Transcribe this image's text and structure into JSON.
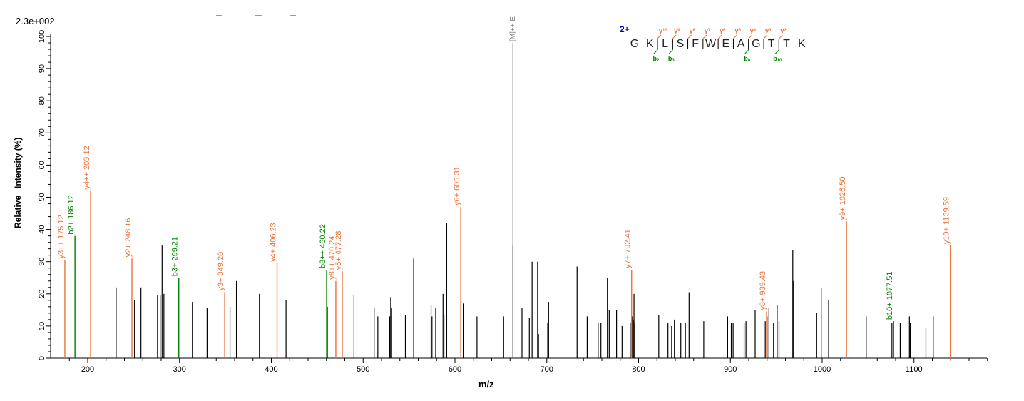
{
  "chart_data": {
    "type": "bar",
    "scale_label": "2.3e+002",
    "xlabel": "m/z",
    "ylabel": "Relative   Intensity (%)",
    "xlim": [
      160,
      1180
    ],
    "ylim": [
      0,
      100
    ],
    "xticks": [
      200,
      300,
      400,
      500,
      600,
      700,
      800,
      900,
      1000,
      1100
    ],
    "yticks": [
      0,
      10,
      20,
      30,
      40,
      50,
      60,
      70,
      80,
      90,
      100
    ],
    "colors": {
      "b": "#008000",
      "y": "#e8733a",
      "plain": "#000000",
      "precursor": "#808080",
      "charge": "#0000cc"
    },
    "precursor": {
      "mz": 663.0,
      "intensity": 98.0,
      "label": "[M]++ E"
    },
    "annotated_peaks": [
      {
        "mz": 175.12,
        "intensity": 30.5,
        "ion": "y",
        "label": "y3++ 175.12"
      },
      {
        "mz": 186.12,
        "intensity": 38.0,
        "ion": "b",
        "label": "b2+ 186.12"
      },
      {
        "mz": 203.12,
        "intensity": 52.0,
        "ion": "y",
        "label": "y4++ 203.12"
      },
      {
        "mz": 248.16,
        "intensity": 31.0,
        "ion": "y",
        "label": "y2+ 248.16"
      },
      {
        "mz": 299.21,
        "intensity": 25.0,
        "ion": "b",
        "label": "b3+ 299.21"
      },
      {
        "mz": 349.2,
        "intensity": 20.5,
        "ion": "y",
        "label": "y3+ 349.20"
      },
      {
        "mz": 406.23,
        "intensity": 29.5,
        "ion": "y",
        "label": "y4+ 406.23"
      },
      {
        "mz": 460.22,
        "intensity": 27.5,
        "ion": "b",
        "label": "b8++ 460.22"
      },
      {
        "mz": 470.24,
        "intensity": 24.0,
        "ion": "y",
        "label": "y8++ 470.24"
      },
      {
        "mz": 477.28,
        "intensity": 27.0,
        "ion": "y",
        "label": "y5+ 477.28"
      },
      {
        "mz": 606.31,
        "intensity": 47.0,
        "ion": "y",
        "label": "y6+ 606.31"
      },
      {
        "mz": 792.41,
        "intensity": 27.5,
        "ion": "y",
        "label": "y7+ 792.41"
      },
      {
        "mz": 939.43,
        "intensity": 14.5,
        "ion": "y",
        "label": "y8+ 939.43"
      },
      {
        "mz": 1026.5,
        "intensity": 42.5,
        "ion": "y",
        "label": "y9+ 1026.50"
      },
      {
        "mz": 1077.51,
        "intensity": 11.5,
        "ion": "b",
        "label": "b10+ 1077.51"
      },
      {
        "mz": 1139.59,
        "intensity": 35.0,
        "ion": "y",
        "label": "y10+ 1139.59"
      }
    ],
    "peaks": [
      [
        231,
        22
      ],
      [
        251,
        18
      ],
      [
        258,
        22
      ],
      [
        276,
        19.5
      ],
      [
        279,
        19.5
      ],
      [
        281,
        35
      ],
      [
        283,
        20
      ],
      [
        314,
        17.5
      ],
      [
        330,
        15.5
      ],
      [
        355,
        16
      ],
      [
        362,
        24
      ],
      [
        387,
        20
      ],
      [
        416,
        18
      ],
      [
        461,
        16
      ],
      [
        490,
        19.5
      ],
      [
        512,
        15.5
      ],
      [
        516,
        13
      ],
      [
        529,
        13
      ],
      [
        530,
        19
      ],
      [
        531,
        15.5
      ],
      [
        546,
        13.5
      ],
      [
        555,
        31
      ],
      [
        574,
        16.5
      ],
      [
        575,
        13
      ],
      [
        579,
        15.5
      ],
      [
        587,
        20
      ],
      [
        588,
        13.5
      ],
      [
        591,
        42
      ],
      [
        609,
        17
      ],
      [
        624,
        13
      ],
      [
        653,
        13
      ],
      [
        663,
        35
      ],
      [
        673,
        15.5
      ],
      [
        681,
        12.5
      ],
      [
        684,
        30
      ],
      [
        690,
        30
      ],
      [
        691,
        7.5
      ],
      [
        701,
        11
      ],
      [
        702,
        17.5
      ],
      [
        733,
        28.5
      ],
      [
        744,
        13
      ],
      [
        756,
        11
      ],
      [
        759,
        11
      ],
      [
        766,
        25
      ],
      [
        768,
        15
      ],
      [
        776,
        15
      ],
      [
        782,
        10
      ],
      [
        791,
        11
      ],
      [
        793,
        13
      ],
      [
        794,
        12
      ],
      [
        795,
        20
      ],
      [
        796,
        11
      ],
      [
        822,
        13.5
      ],
      [
        832,
        11
      ],
      [
        836,
        10
      ],
      [
        839,
        12
      ],
      [
        846,
        11
      ],
      [
        851,
        11
      ],
      [
        855,
        20.5
      ],
      [
        871,
        11.5
      ],
      [
        897,
        13
      ],
      [
        901,
        11
      ],
      [
        903,
        11
      ],
      [
        915,
        11
      ],
      [
        917,
        11.5
      ],
      [
        927,
        15
      ],
      [
        938,
        11.5
      ],
      [
        940,
        13
      ],
      [
        942,
        15.5
      ],
      [
        947,
        11
      ],
      [
        951,
        16.5
      ],
      [
        953,
        11.5
      ],
      [
        968,
        33.5
      ],
      [
        969,
        24
      ],
      [
        994,
        14
      ],
      [
        999,
        22
      ],
      [
        1007,
        18
      ],
      [
        1048,
        13
      ],
      [
        1076,
        11
      ],
      [
        1078,
        10
      ],
      [
        1085,
        11
      ],
      [
        1095,
        13
      ],
      [
        1096,
        11
      ],
      [
        1113,
        9.5
      ],
      [
        1121,
        13
      ]
    ],
    "peptide": {
      "charge": "2+",
      "residues": [
        "G",
        "K",
        "L",
        "S",
        "F",
        "W",
        "E",
        "A",
        "G",
        "T",
        "T",
        "K"
      ],
      "y_ions": [
        {
          "label": "y",
          "sub": "10",
          "after": 2
        },
        {
          "label": "y",
          "sub": "9",
          "after": 3
        },
        {
          "label": "y",
          "sub": "8",
          "after": 4
        },
        {
          "label": "y",
          "sub": "7",
          "after": 5
        },
        {
          "label": "y",
          "sub": "6",
          "after": 6
        },
        {
          "label": "y",
          "sub": "5",
          "after": 7
        },
        {
          "label": "y",
          "sub": "4",
          "after": 8
        },
        {
          "label": "y",
          "sub": "3",
          "after": 9
        },
        {
          "label": "y",
          "sub": "2",
          "after": 10
        }
      ],
      "b_ions": [
        {
          "label": "b",
          "sub": "2",
          "after": 2
        },
        {
          "label": "b",
          "sub": "3",
          "after": 3
        },
        {
          "label": "b",
          "sub": "8",
          "after": 8
        },
        {
          "label": "b",
          "sub": "10",
          "after": 10
        }
      ]
    }
  }
}
